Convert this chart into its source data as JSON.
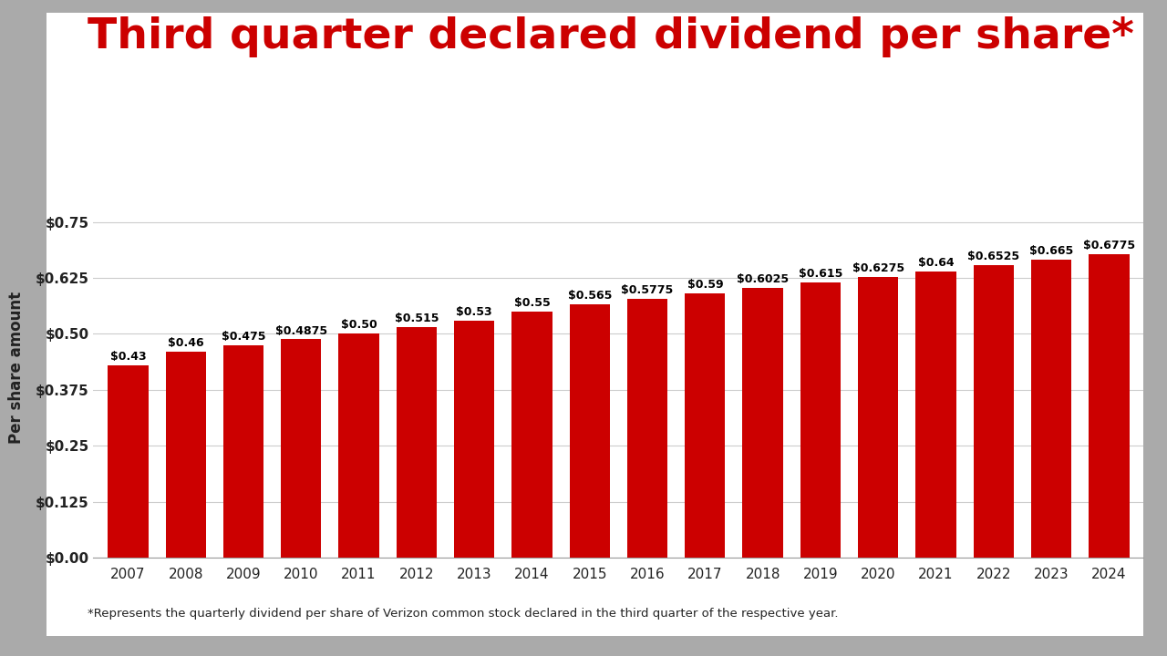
{
  "title": "Third quarter declared dividend per share*",
  "ylabel": "Per share amount",
  "footnote": "*Represents the quarterly dividend per share of Verizon common stock declared in the third quarter of the respective year.",
  "years": [
    2007,
    2008,
    2009,
    2010,
    2011,
    2012,
    2013,
    2014,
    2015,
    2016,
    2017,
    2018,
    2019,
    2020,
    2021,
    2022,
    2023,
    2024
  ],
  "values": [
    0.43,
    0.46,
    0.475,
    0.4875,
    0.5,
    0.515,
    0.53,
    0.55,
    0.565,
    0.5775,
    0.59,
    0.6025,
    0.615,
    0.6275,
    0.64,
    0.6525,
    0.665,
    0.6775
  ],
  "labels": [
    "$0.43",
    "$0.46",
    "$0.475",
    "$0.4875",
    "$0.50",
    "$0.515",
    "$0.53",
    "$0.55",
    "$0.565",
    "$0.5775",
    "$0.59",
    "$0.6025",
    "$0.615",
    "$0.6275",
    "$0.64",
    "$0.6525",
    "$0.665",
    "$0.6775"
  ],
  "bar_color": "#CC0000",
  "background_color": "#FFFFFF",
  "outer_bg_color": "#AAAAAA",
  "title_color": "#CC0000",
  "axis_color": "#222222",
  "grid_color": "#CCCCCC",
  "ylim": [
    0,
    0.85
  ],
  "yticks": [
    0.0,
    0.125,
    0.25,
    0.375,
    0.5,
    0.625,
    0.75
  ],
  "ytick_labels": [
    "$0.00",
    "$0.125",
    "$0.25",
    "$0.375",
    "$0.50",
    "$0.625",
    "$0.75"
  ],
  "title_fontsize": 34,
  "label_fontsize": 9.0,
  "tick_fontsize": 11,
  "ylabel_fontsize": 12,
  "footnote_fontsize": 9.5,
  "bar_width": 0.7
}
